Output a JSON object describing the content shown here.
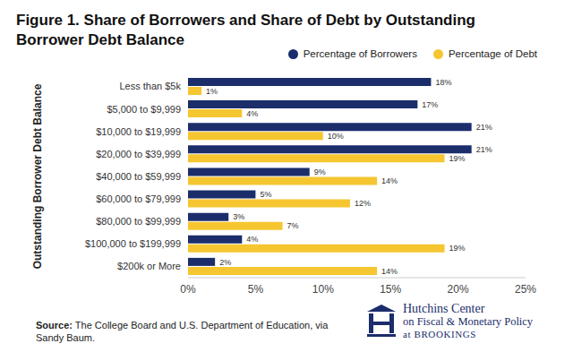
{
  "chart_data": {
    "type": "bar",
    "orientation": "horizontal",
    "title": "Figure 1. Share of Borrowers and Share of Debt by Outstanding Borrower Debt Balance",
    "y_label": "Outstanding Borrower Debt Balance",
    "categories": [
      "Less than $5k",
      "$5,000 to $9,999",
      "$10,000 to $19,999",
      "$20,000 to $39,999",
      "$40,000 to $59,999",
      "$60,000 to $79,999",
      "$80,000 to $99,999",
      "$100,000 to $199,999",
      "$200k or More"
    ],
    "series": [
      {
        "name": "Percentage of Borrowers",
        "color": "#1b2d6b",
        "values": [
          18,
          17,
          21,
          21,
          9,
          5,
          3,
          4,
          2
        ],
        "value_labels": [
          "18%",
          "17%",
          "21%",
          "21%",
          "9%",
          "5%",
          "3%",
          "4%",
          "2%"
        ]
      },
      {
        "name": "Percentage of Debt",
        "color": "#f6c631",
        "values": [
          1,
          4,
          10,
          19,
          14,
          12,
          7,
          19,
          14
        ],
        "value_labels": [
          "1%",
          "4%",
          "10%",
          "19%",
          "14%",
          "12%",
          "7%",
          "19%",
          "14%"
        ]
      }
    ],
    "xlim": [
      0,
      25
    ],
    "xticks": [
      {
        "value": 0,
        "label": "0%"
      },
      {
        "value": 5,
        "label": "5%"
      },
      {
        "value": 10,
        "label": "10%"
      },
      {
        "value": 15,
        "label": "15%"
      },
      {
        "value": 20,
        "label": "20%"
      },
      {
        "value": 25,
        "label": "25%"
      }
    ],
    "data_labels": true,
    "legend": "top-right",
    "grid": false,
    "annotations": {
      "source": "Source: The College Board and U.S. Department of Education, via Sandy Baum.",
      "logo": [
        "Hutchins Center",
        "on Fiscal & Monetary Policy",
        "at BROOKINGS"
      ]
    }
  }
}
